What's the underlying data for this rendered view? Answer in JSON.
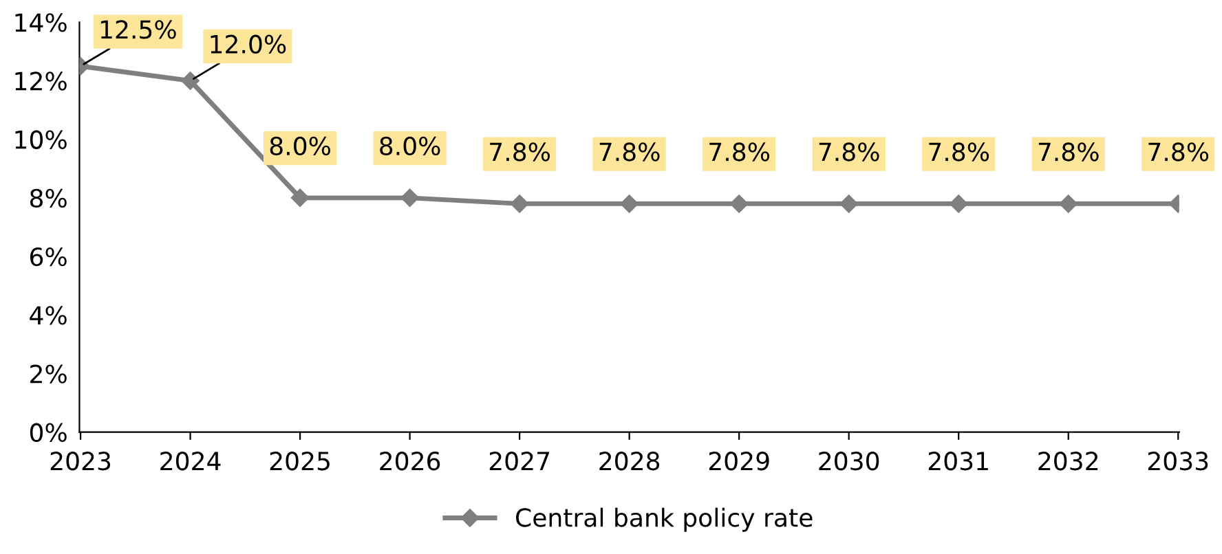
{
  "chart_data": {
    "type": "line",
    "categories": [
      "2023",
      "2024",
      "2025",
      "2026",
      "2027",
      "2028",
      "2029",
      "2030",
      "2031",
      "2032",
      "2033"
    ],
    "series": [
      {
        "name": "Central bank policy rate",
        "color": "#7f7f7f",
        "values": [
          12.5,
          12.0,
          8.0,
          8.0,
          7.8,
          7.8,
          7.8,
          7.8,
          7.8,
          7.8,
          7.8
        ],
        "value_labels": [
          "12.5%",
          "12.0%",
          "8.0%",
          "8.0%",
          "7.8%",
          "7.8%",
          "7.8%",
          "7.8%",
          "7.8%",
          "7.8%",
          "7.8%"
        ]
      }
    ],
    "ylim": [
      0,
      14
    ],
    "yticks": [
      {
        "value": 0,
        "label": "0%"
      },
      {
        "value": 2,
        "label": "2%"
      },
      {
        "value": 4,
        "label": "4%"
      },
      {
        "value": 6,
        "label": "6%"
      },
      {
        "value": 8,
        "label": "8%"
      },
      {
        "value": 10,
        "label": "10%"
      },
      {
        "value": 12,
        "label": "12%"
      },
      {
        "value": 14,
        "label": "14%"
      }
    ],
    "grid": false,
    "legend": "bottom",
    "marker": "diamond",
    "line_style": "solid"
  }
}
